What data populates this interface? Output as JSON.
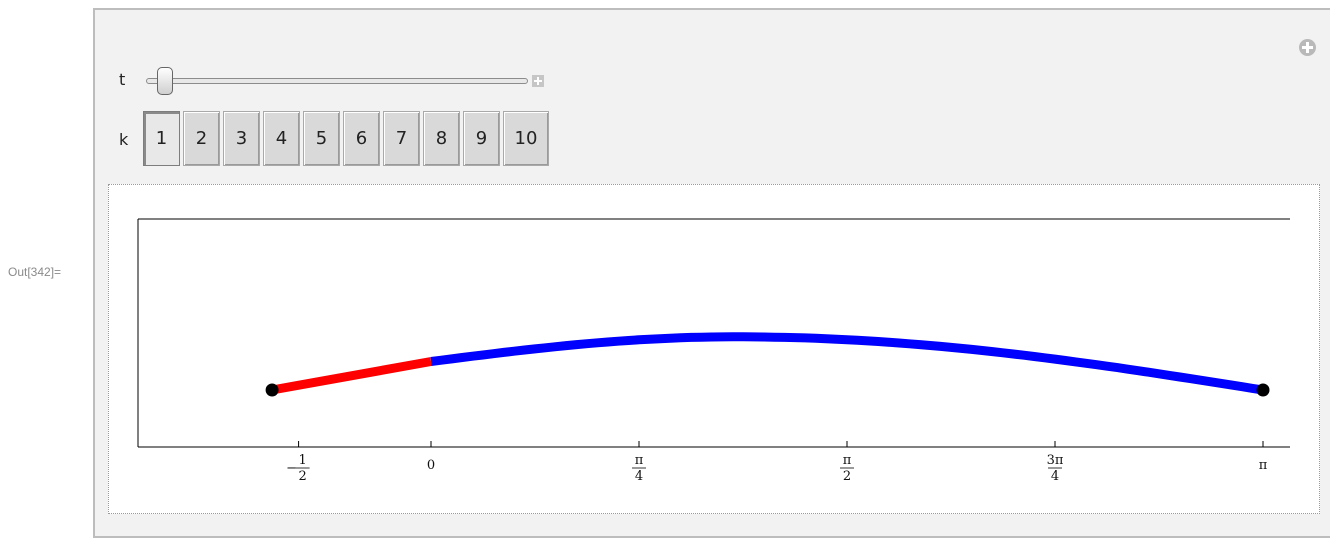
{
  "output_label": "Out[342]=",
  "controls": {
    "t_label": "t",
    "k_label": "k",
    "k_options": [
      "1",
      "2",
      "3",
      "4",
      "5",
      "6",
      "7",
      "8",
      "9",
      "10"
    ],
    "k_selected": "1",
    "t_value_fraction": 0.03
  },
  "icons": {
    "panel_options": "plus-circle-icon",
    "slider_expand": "plus-icon"
  },
  "colors": {
    "trace": "#ff0000",
    "curve": "#0000ff",
    "endpoint": "#000000"
  },
  "chart_data": {
    "type": "line",
    "title": "",
    "xlabel": "",
    "ylabel": "",
    "xlim": [
      -0.7,
      3.2
    ],
    "ylim": [
      -0.9,
      0.3
    ],
    "xticks": [
      {
        "value": -0.5,
        "num": "1",
        "den": "2",
        "sign": "−"
      },
      {
        "value": 0,
        "num": "0",
        "den": "",
        "sign": ""
      },
      {
        "value": 0.785398,
        "num": "π",
        "den": "4",
        "sign": ""
      },
      {
        "value": 1.570796,
        "num": "π",
        "den": "2",
        "sign": ""
      },
      {
        "value": 2.356194,
        "num": "3π",
        "den": "4",
        "sign": ""
      },
      {
        "value": 3.141593,
        "num": "π",
        "den": "",
        "sign": ""
      }
    ],
    "series": [
      {
        "color": "#ff0000",
        "x": [
          -0.6,
          0
        ],
        "y": [
          -0.6,
          -0.45
        ]
      },
      {
        "color": "#0000ff",
        "curve": "arc",
        "x_start": 0,
        "x_end": 3.141593,
        "y_start": -0.45,
        "y_peak": -0.32,
        "x_peak": 1.15,
        "y_end": -0.6
      }
    ],
    "points": [
      {
        "x": -0.6,
        "y": -0.6
      },
      {
        "x": 3.141593,
        "y": -0.6
      }
    ]
  }
}
